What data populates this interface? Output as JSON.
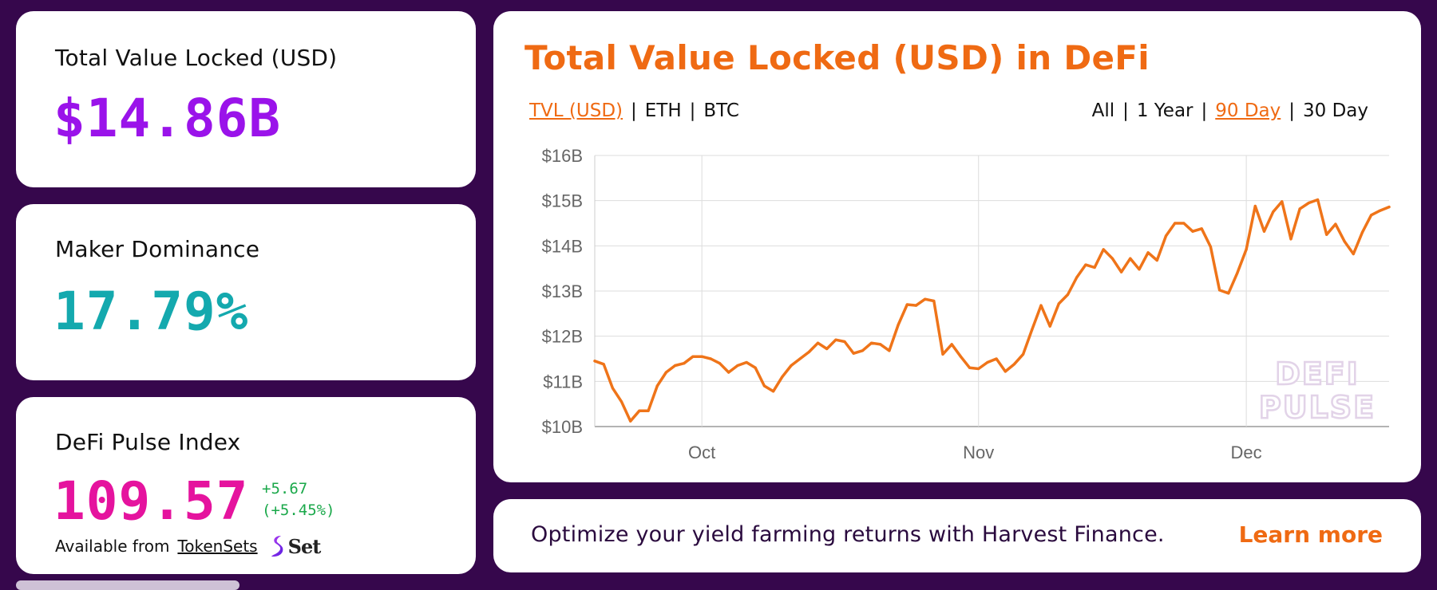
{
  "stats": {
    "tvl": {
      "label": "Total Value Locked (USD)",
      "value": "$14.86B"
    },
    "maker": {
      "label": "Maker Dominance",
      "value": "17.79%"
    },
    "dpi": {
      "label": "DeFi Pulse Index",
      "value": "109.57",
      "change_abs": "+5.67",
      "change_pct": "(+5.45%)",
      "available_text": "Available from",
      "available_link": "TokenSets",
      "logo_text": "Set"
    }
  },
  "chart": {
    "title": "Total Value Locked (USD) in DeFi",
    "metric_toggles": [
      {
        "label": "TVL (USD)",
        "active": true
      },
      {
        "label": "ETH",
        "active": false
      },
      {
        "label": "BTC",
        "active": false
      }
    ],
    "range_toggles": [
      {
        "label": "All",
        "active": false
      },
      {
        "label": "1 Year",
        "active": false
      },
      {
        "label": "90 Day",
        "active": true
      },
      {
        "label": "30 Day",
        "active": false
      }
    ],
    "watermark": [
      "DEFI",
      "PULSE"
    ]
  },
  "chart_data": {
    "type": "line",
    "title": "Total Value Locked (USD) in DeFi",
    "xlabel": "",
    "ylabel": "",
    "ylim": [
      10,
      16
    ],
    "y_unit": "B USD",
    "y_ticks": [
      "$10B",
      "$11B",
      "$12B",
      "$13B",
      "$14B",
      "$15B",
      "$16B"
    ],
    "x_ticks": [
      "Oct",
      "Nov",
      "Dec"
    ],
    "x_tick_days": [
      12,
      43,
      73
    ],
    "xlim_days": [
      0,
      89
    ],
    "grid": true,
    "legend": "none",
    "color": "#ef7419",
    "series": [
      {
        "x_days": [
          0,
          1,
          2,
          3,
          4,
          5,
          6,
          7,
          8,
          9,
          10,
          11,
          12,
          13,
          14,
          15,
          16,
          17,
          18,
          19,
          20,
          21,
          22,
          23,
          24,
          25,
          26,
          27,
          28,
          29,
          30,
          31,
          32,
          33,
          34,
          35,
          36,
          37,
          38,
          39,
          40,
          41,
          42,
          43,
          44,
          45,
          46,
          47,
          48,
          49,
          50,
          51,
          52,
          53,
          54,
          55,
          56,
          57,
          58,
          59,
          60,
          61,
          62,
          63,
          64,
          65,
          66,
          67,
          68,
          69,
          70,
          71,
          72,
          73,
          74,
          75,
          76,
          77,
          78,
          79,
          80,
          81,
          82,
          83,
          84,
          85,
          86,
          87,
          88,
          89
        ],
        "values": [
          11.45,
          11.38,
          10.85,
          10.55,
          10.12,
          10.35,
          10.35,
          10.9,
          11.2,
          11.35,
          11.4,
          11.55,
          11.55,
          11.5,
          11.4,
          11.2,
          11.35,
          11.42,
          11.3,
          10.9,
          10.78,
          11.1,
          11.35,
          11.5,
          11.65,
          11.85,
          11.72,
          11.92,
          11.88,
          11.62,
          11.68,
          11.85,
          11.82,
          11.68,
          12.25,
          12.7,
          12.68,
          12.82,
          12.78,
          11.6,
          11.82,
          11.55,
          11.3,
          11.28,
          11.42,
          11.5,
          11.22,
          11.38,
          11.6,
          12.15,
          12.68,
          12.22,
          12.72,
          12.92,
          13.3,
          13.58,
          13.52,
          13.92,
          13.72,
          13.42,
          13.72,
          13.48,
          13.85,
          13.68,
          14.22,
          14.5,
          14.5,
          14.32,
          14.38,
          13.98,
          13.02,
          12.95,
          13.4,
          13.92,
          14.88,
          14.32,
          14.75,
          14.98,
          14.15,
          14.82,
          14.95,
          15.02,
          14.25,
          14.48,
          14.1,
          13.82,
          14.3,
          14.68,
          14.78,
          14.86
        ]
      }
    ]
  },
  "promo": {
    "text": "Optimize your yield farming returns with Harvest Finance.",
    "link": "Learn more"
  }
}
